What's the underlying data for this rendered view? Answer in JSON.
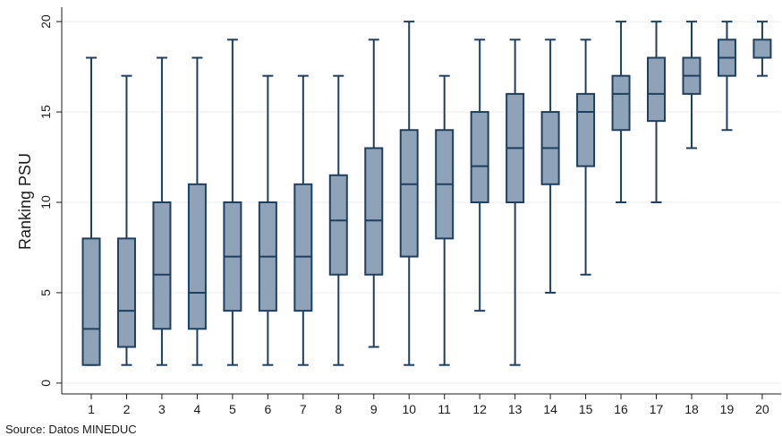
{
  "chart_data": {
    "type": "box",
    "title": "",
    "xlabel": "",
    "ylabel": "Ranking PSU",
    "ylim": [
      -0.6,
      20.6
    ],
    "yticks": [
      0,
      5,
      10,
      15,
      20
    ],
    "categories": [
      "1",
      "2",
      "3",
      "4",
      "5",
      "6",
      "7",
      "8",
      "9",
      "10",
      "11",
      "12",
      "13",
      "14",
      "15",
      "16",
      "17",
      "18",
      "19",
      "20"
    ],
    "boxes": [
      {
        "min": 1,
        "q1": 1,
        "median": 3,
        "q3": 8,
        "max": 18
      },
      {
        "min": 1,
        "q1": 2,
        "median": 4,
        "q3": 8,
        "max": 17
      },
      {
        "min": 1,
        "q1": 3,
        "median": 6,
        "q3": 10,
        "max": 18
      },
      {
        "min": 1,
        "q1": 3,
        "median": 5,
        "q3": 11,
        "max": 18
      },
      {
        "min": 1,
        "q1": 4,
        "median": 7,
        "q3": 10,
        "max": 19
      },
      {
        "min": 1,
        "q1": 4,
        "median": 7,
        "q3": 10,
        "max": 17
      },
      {
        "min": 1,
        "q1": 4,
        "median": 7,
        "q3": 11,
        "max": 17
      },
      {
        "min": 1,
        "q1": 6,
        "median": 9,
        "q3": 11.5,
        "max": 17
      },
      {
        "min": 2,
        "q1": 6,
        "median": 9,
        "q3": 13,
        "max": 19
      },
      {
        "min": 1,
        "q1": 7,
        "median": 11,
        "q3": 14,
        "max": 20
      },
      {
        "min": 1,
        "q1": 8,
        "median": 11,
        "q3": 14,
        "max": 17
      },
      {
        "min": 4,
        "q1": 10,
        "median": 12,
        "q3": 15,
        "max": 19
      },
      {
        "min": 1,
        "q1": 10,
        "median": 13,
        "q3": 16,
        "max": 19
      },
      {
        "min": 5,
        "q1": 11,
        "median": 13,
        "q3": 15,
        "max": 19
      },
      {
        "min": 6,
        "q1": 12,
        "median": 15,
        "q3": 16,
        "max": 19
      },
      {
        "min": 10,
        "q1": 14,
        "median": 16,
        "q3": 17,
        "max": 20
      },
      {
        "min": 10,
        "q1": 14.5,
        "median": 16,
        "q3": 18,
        "max": 20
      },
      {
        "min": 13,
        "q1": 16,
        "median": 17,
        "q3": 18,
        "max": 20
      },
      {
        "min": 14,
        "q1": 17,
        "median": 18,
        "q3": 19,
        "max": 20
      },
      {
        "min": 17,
        "q1": 18,
        "median": 18,
        "q3": 19,
        "max": 20
      }
    ],
    "grid": true,
    "colors": {
      "box_fill": "#8ea3b8",
      "box_stroke": "#1f3f5f",
      "grid": "#e7ebef",
      "axis": "#1a1a1a"
    },
    "source_note": "Source: Datos MINEDUC"
  }
}
